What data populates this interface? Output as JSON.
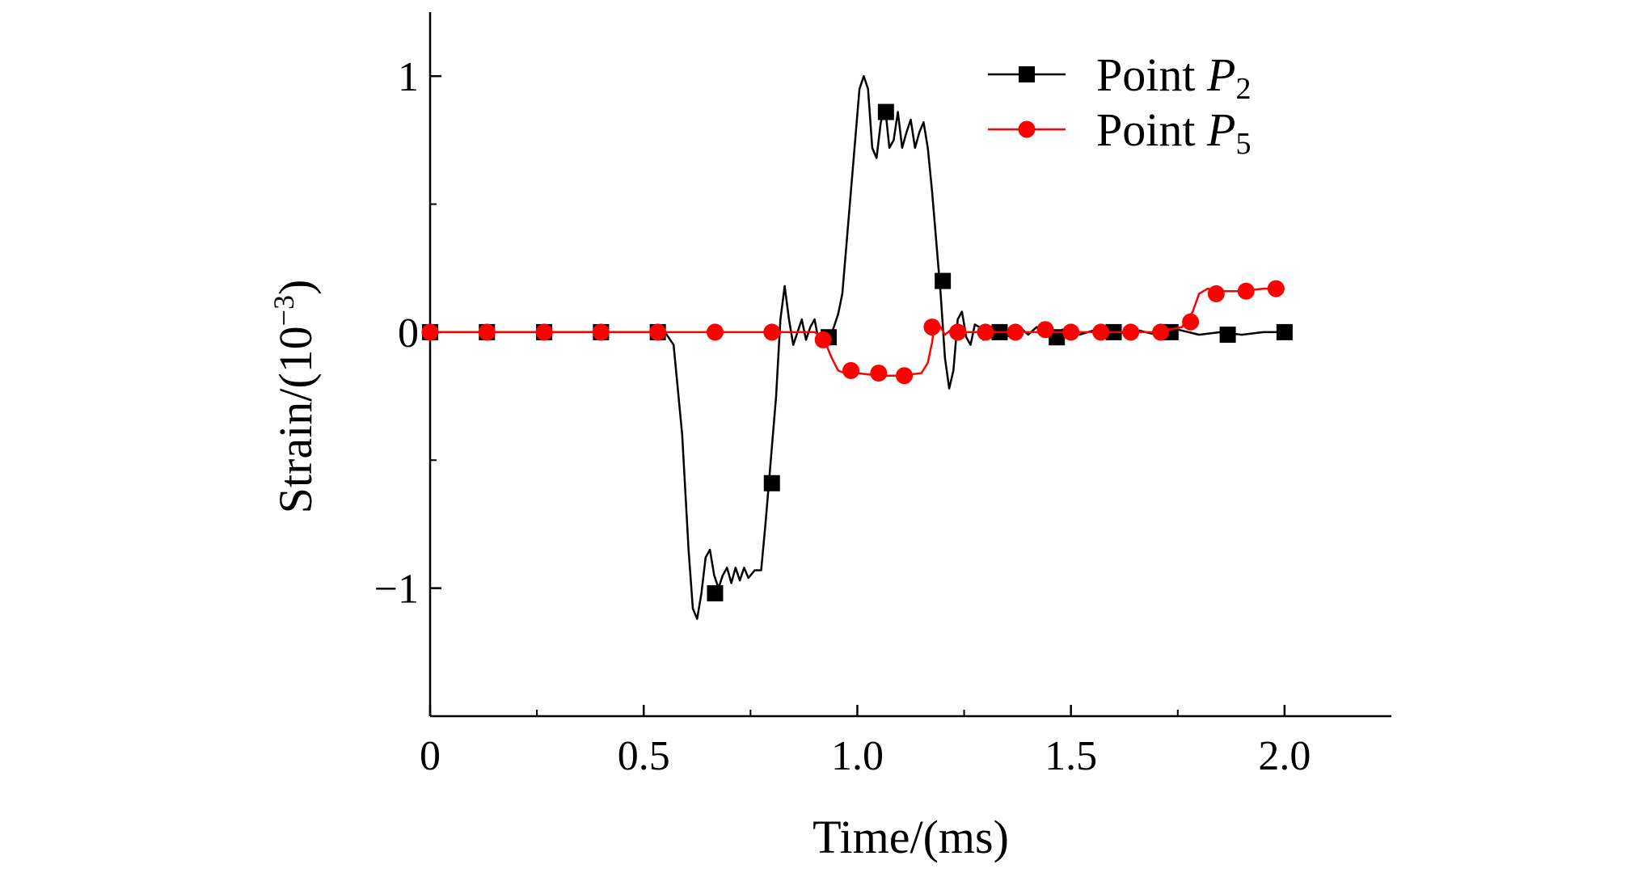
{
  "chart_data": {
    "type": "line",
    "title": "",
    "xlabel": "Time/(ms)",
    "ylabel": {
      "prefix": "Strain/(10",
      "exponent": "−3",
      "suffix": ")"
    },
    "xlim": [
      0,
      2.25
    ],
    "ylim": [
      -1.5,
      1.25
    ],
    "x_ticks": [
      {
        "value": 0,
        "label": "0"
      },
      {
        "value": 0.5,
        "label": "0.5"
      },
      {
        "value": 1.0,
        "label": "1.0"
      },
      {
        "value": 1.5,
        "label": "1.5"
      },
      {
        "value": 2.0,
        "label": "2.0"
      }
    ],
    "x_minor_ticks": [
      0.25,
      0.75,
      1.25,
      1.75
    ],
    "y_ticks": [
      {
        "value": -1,
        "label": "−1"
      },
      {
        "value": 0,
        "label": "0"
      },
      {
        "value": 1,
        "label": "1"
      }
    ],
    "y_minor_ticks": [
      -0.5,
      0.5
    ],
    "grid": false,
    "legend_position": "top-right",
    "series": [
      {
        "name": {
          "prefix": "Point ",
          "italic": "P",
          "subscript": "2"
        },
        "color": "#000000",
        "marker": "square",
        "line": [
          [
            0,
            0
          ],
          [
            0.5,
            0
          ],
          [
            0.55,
            0
          ],
          [
            0.57,
            -0.05
          ],
          [
            0.59,
            -0.4
          ],
          [
            0.605,
            -0.85
          ],
          [
            0.615,
            -1.08
          ],
          [
            0.625,
            -1.12
          ],
          [
            0.635,
            -1.02
          ],
          [
            0.645,
            -0.88
          ],
          [
            0.655,
            -0.85
          ],
          [
            0.665,
            -0.95
          ],
          [
            0.675,
            -1.0
          ],
          [
            0.685,
            -0.95
          ],
          [
            0.695,
            -0.92
          ],
          [
            0.705,
            -0.98
          ],
          [
            0.715,
            -0.92
          ],
          [
            0.725,
            -0.97
          ],
          [
            0.735,
            -0.92
          ],
          [
            0.745,
            -0.96
          ],
          [
            0.76,
            -0.93
          ],
          [
            0.775,
            -0.93
          ],
          [
            0.785,
            -0.75
          ],
          [
            0.795,
            -0.55
          ],
          [
            0.81,
            -0.25
          ],
          [
            0.82,
            0.05
          ],
          [
            0.83,
            0.18
          ],
          [
            0.84,
            0.05
          ],
          [
            0.85,
            -0.05
          ],
          [
            0.86,
            0.0
          ],
          [
            0.87,
            0.05
          ],
          [
            0.88,
            -0.03
          ],
          [
            0.89,
            0.02
          ],
          [
            0.9,
            0.05
          ],
          [
            0.91,
            -0.04
          ],
          [
            0.92,
            0.0
          ],
          [
            0.935,
            -0.02
          ],
          [
            0.945,
            0.02
          ],
          [
            0.955,
            0.07
          ],
          [
            0.965,
            0.15
          ],
          [
            0.975,
            0.35
          ],
          [
            0.985,
            0.55
          ],
          [
            0.995,
            0.75
          ],
          [
            1.005,
            0.95
          ],
          [
            1.015,
            1.0
          ],
          [
            1.025,
            0.95
          ],
          [
            1.035,
            0.72
          ],
          [
            1.045,
            0.68
          ],
          [
            1.055,
            0.82
          ],
          [
            1.065,
            0.88
          ],
          [
            1.075,
            0.72
          ],
          [
            1.085,
            0.75
          ],
          [
            1.095,
            0.86
          ],
          [
            1.105,
            0.72
          ],
          [
            1.115,
            0.78
          ],
          [
            1.125,
            0.83
          ],
          [
            1.135,
            0.72
          ],
          [
            1.145,
            0.78
          ],
          [
            1.155,
            0.82
          ],
          [
            1.165,
            0.72
          ],
          [
            1.175,
            0.55
          ],
          [
            1.185,
            0.35
          ],
          [
            1.195,
            0.15
          ],
          [
            1.205,
            -0.1
          ],
          [
            1.215,
            -0.22
          ],
          [
            1.225,
            -0.15
          ],
          [
            1.235,
            0.05
          ],
          [
            1.245,
            0.08
          ],
          [
            1.255,
            -0.02
          ],
          [
            1.265,
            -0.05
          ],
          [
            1.275,
            0.03
          ],
          [
            1.285,
            0.02
          ],
          [
            1.295,
            -0.03
          ],
          [
            1.305,
            0.01
          ],
          [
            1.33,
            0.0
          ],
          [
            1.36,
            -0.02
          ],
          [
            1.38,
            0.02
          ],
          [
            1.4,
            -0.01
          ],
          [
            1.42,
            0.02
          ],
          [
            1.45,
            -0.02
          ],
          [
            1.48,
            0.01
          ],
          [
            1.52,
            -0.01
          ],
          [
            1.56,
            0.01
          ],
          [
            1.6,
            -0.01
          ],
          [
            1.65,
            0.01
          ],
          [
            1.7,
            -0.01
          ],
          [
            1.75,
            0.01
          ],
          [
            1.8,
            -0.01
          ],
          [
            1.85,
            0.0
          ],
          [
            1.9,
            -0.01
          ],
          [
            1.95,
            0.0
          ],
          [
            2.0,
            0.0
          ]
        ],
        "markers": [
          [
            0,
            0
          ],
          [
            0.133,
            0
          ],
          [
            0.267,
            0
          ],
          [
            0.4,
            0
          ],
          [
            0.533,
            0
          ],
          [
            0.667,
            -1.02
          ],
          [
            0.8,
            -0.59
          ],
          [
            0.933,
            -0.02
          ],
          [
            1.067,
            0.86
          ],
          [
            1.2,
            0.2
          ],
          [
            1.333,
            0.0
          ],
          [
            1.467,
            -0.02
          ],
          [
            1.6,
            0.0
          ],
          [
            1.733,
            0.0
          ],
          [
            1.867,
            -0.01
          ],
          [
            2.0,
            0.0
          ]
        ]
      },
      {
        "name": {
          "prefix": "Point ",
          "italic": "P",
          "subscript": "5"
        },
        "color": "#ff0000",
        "marker": "circle",
        "line": [
          [
            0,
            0
          ],
          [
            0.9,
            0
          ],
          [
            0.92,
            -0.02
          ],
          [
            0.94,
            -0.1
          ],
          [
            0.955,
            -0.15
          ],
          [
            0.97,
            -0.16
          ],
          [
            1.0,
            -0.16
          ],
          [
            1.05,
            -0.17
          ],
          [
            1.1,
            -0.17
          ],
          [
            1.15,
            -0.16
          ],
          [
            1.165,
            -0.12
          ],
          [
            1.175,
            -0.04
          ],
          [
            1.18,
            0.02
          ],
          [
            1.195,
            0.02
          ],
          [
            1.205,
            -0.01
          ],
          [
            1.22,
            0.01
          ],
          [
            1.24,
            0.0
          ],
          [
            1.3,
            0.0
          ],
          [
            1.4,
            0.0
          ],
          [
            1.5,
            0.0
          ],
          [
            1.6,
            0.0
          ],
          [
            1.7,
            0.0
          ],
          [
            1.76,
            0.02
          ],
          [
            1.785,
            0.08
          ],
          [
            1.8,
            0.15
          ],
          [
            1.82,
            0.17
          ],
          [
            1.85,
            0.16
          ],
          [
            1.9,
            0.16
          ],
          [
            1.95,
            0.17
          ],
          [
            2.0,
            0.17
          ]
        ],
        "markers": [
          [
            0,
            0
          ],
          [
            0.133,
            0
          ],
          [
            0.267,
            0
          ],
          [
            0.4,
            0
          ],
          [
            0.533,
            0
          ],
          [
            0.667,
            0
          ],
          [
            0.8,
            0
          ],
          [
            0.92,
            -0.03
          ],
          [
            0.985,
            -0.15
          ],
          [
            1.05,
            -0.16
          ],
          [
            1.11,
            -0.17
          ],
          [
            1.175,
            0.02
          ],
          [
            1.235,
            0.0
          ],
          [
            1.3,
            0.0
          ],
          [
            1.37,
            0.0
          ],
          [
            1.44,
            0.01
          ],
          [
            1.5,
            0.0
          ],
          [
            1.57,
            0.0
          ],
          [
            1.64,
            0.0
          ],
          [
            1.71,
            0.0
          ],
          [
            1.78,
            0.04
          ],
          [
            1.84,
            0.15
          ],
          [
            1.91,
            0.16
          ],
          [
            1.98,
            0.17
          ]
        ]
      }
    ]
  }
}
